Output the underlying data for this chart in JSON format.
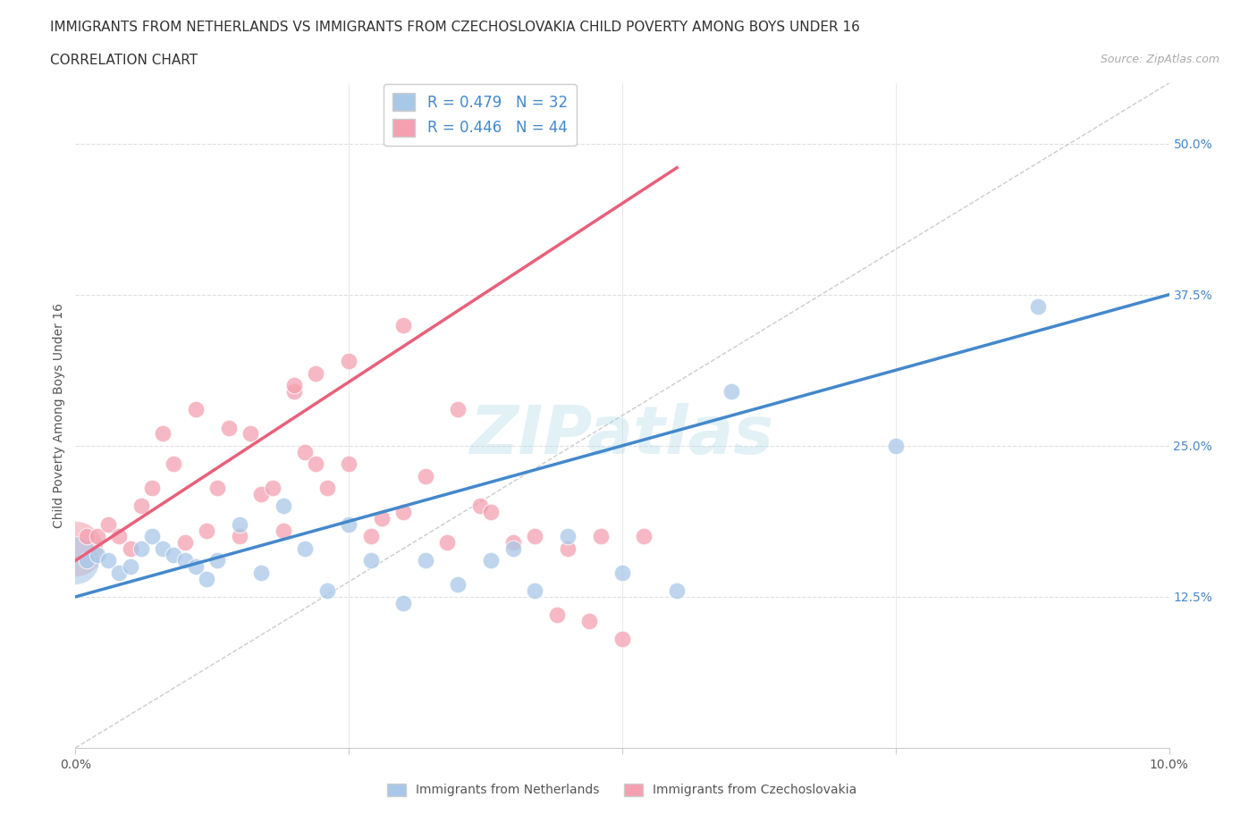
{
  "title_line1": "IMMIGRANTS FROM NETHERLANDS VS IMMIGRANTS FROM CZECHOSLOVAKIA CHILD POVERTY AMONG BOYS UNDER 16",
  "title_line2": "CORRELATION CHART",
  "source_text": "Source: ZipAtlas.com",
  "ylabel": "Child Poverty Among Boys Under 16",
  "xlim": [
    0.0,
    0.1
  ],
  "ylim": [
    0.0,
    0.55
  ],
  "yticks": [
    0.0,
    0.125,
    0.25,
    0.375,
    0.5
  ],
  "ytick_labels": [
    "",
    "12.5%",
    "25.0%",
    "37.5%",
    "50.0%"
  ],
  "xticks": [
    0.0,
    0.025,
    0.05,
    0.075,
    0.1
  ],
  "xtick_labels": [
    "0.0%",
    "",
    "",
    "",
    "10.0%"
  ],
  "netherlands_R": 0.479,
  "netherlands_N": 32,
  "czechoslovakia_R": 0.446,
  "czechoslovakia_N": 44,
  "netherlands_color": "#a8c8e8",
  "czechoslovakia_color": "#f4a0b0",
  "netherlands_line_color": "#4488cc",
  "czechoslovakia_line_color": "#e8607a",
  "diagonal_color": "#cccccc",
  "watermark": "ZIPatlas",
  "netherlands_x": [
    0.001,
    0.002,
    0.003,
    0.004,
    0.005,
    0.006,
    0.007,
    0.008,
    0.009,
    0.01,
    0.011,
    0.012,
    0.013,
    0.015,
    0.017,
    0.019,
    0.021,
    0.023,
    0.025,
    0.027,
    0.03,
    0.032,
    0.035,
    0.038,
    0.04,
    0.042,
    0.045,
    0.05,
    0.055,
    0.06,
    0.075,
    0.088
  ],
  "netherlands_y": [
    0.155,
    0.16,
    0.155,
    0.145,
    0.15,
    0.165,
    0.175,
    0.165,
    0.16,
    0.155,
    0.15,
    0.14,
    0.155,
    0.185,
    0.145,
    0.2,
    0.165,
    0.13,
    0.185,
    0.155,
    0.12,
    0.155,
    0.135,
    0.155,
    0.165,
    0.13,
    0.175,
    0.145,
    0.13,
    0.295,
    0.25,
    0.365
  ],
  "czechoslovakia_x": [
    0.001,
    0.002,
    0.003,
    0.004,
    0.005,
    0.006,
    0.007,
    0.008,
    0.009,
    0.01,
    0.011,
    0.012,
    0.013,
    0.014,
    0.015,
    0.016,
    0.017,
    0.018,
    0.019,
    0.02,
    0.021,
    0.022,
    0.023,
    0.025,
    0.027,
    0.028,
    0.03,
    0.032,
    0.034,
    0.035,
    0.037,
    0.038,
    0.04,
    0.042,
    0.044,
    0.045,
    0.047,
    0.048,
    0.05,
    0.052,
    0.03,
    0.025,
    0.022,
    0.02
  ],
  "czechoslovakia_y": [
    0.175,
    0.175,
    0.185,
    0.175,
    0.165,
    0.2,
    0.215,
    0.26,
    0.235,
    0.17,
    0.28,
    0.18,
    0.215,
    0.265,
    0.175,
    0.26,
    0.21,
    0.215,
    0.18,
    0.295,
    0.245,
    0.235,
    0.215,
    0.235,
    0.175,
    0.19,
    0.195,
    0.225,
    0.17,
    0.28,
    0.2,
    0.195,
    0.17,
    0.175,
    0.11,
    0.165,
    0.105,
    0.175,
    0.09,
    0.175,
    0.35,
    0.32,
    0.31,
    0.3
  ],
  "nl_line_x0": 0.0,
  "nl_line_y0": 0.125,
  "nl_line_x1": 0.1,
  "nl_line_y1": 0.375,
  "cz_line_x0": 0.0,
  "cz_line_y0": 0.155,
  "cz_line_x1": 0.055,
  "cz_line_y1": 0.48,
  "background_color": "#ffffff",
  "grid_color": "#e0e0e0"
}
